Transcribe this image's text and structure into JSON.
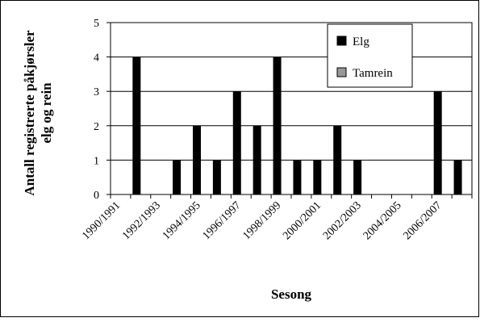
{
  "chart_data": {
    "type": "bar",
    "xlabel": "Sesong",
    "ylabel_lines": [
      "Antall registrerte påkjørsler",
      "elg og rein"
    ],
    "ylim": [
      0,
      5
    ],
    "yticks": [
      "0",
      "1",
      "2",
      "3",
      "4",
      "5"
    ],
    "grid": "horizontal",
    "legend_position": "top-right",
    "categories": [
      "1990/1991",
      "1991/1992",
      "1992/1993",
      "1993/1994",
      "1994/1995",
      "1995/1996",
      "1996/1997",
      "1997/1998",
      "1998/1999",
      "1999/2000",
      "2000/2001",
      "2001/2002",
      "2002/2003",
      "2003/2004",
      "2004/2005",
      "2005/2006",
      "2006/2007",
      "2007/2008"
    ],
    "x_tick_labels": [
      "1990/1991",
      "1992/1993",
      "1994/1995",
      "1996/1997",
      "1998/1999",
      "2000/2001",
      "2002/2003",
      "2004/2005",
      "2006/2007"
    ],
    "series": [
      {
        "name": "Elg",
        "color": "#000000",
        "values": [
          0,
          4,
          0,
          1,
          2,
          1,
          3,
          2,
          4,
          1,
          1,
          2,
          1,
          0,
          0,
          0,
          3,
          1
        ]
      },
      {
        "name": "Tamrein",
        "color": "#999999",
        "values": [
          0,
          0,
          0,
          0,
          0,
          0,
          0,
          0,
          0,
          0,
          0,
          0,
          0,
          0,
          0,
          0,
          0,
          0
        ]
      }
    ]
  }
}
